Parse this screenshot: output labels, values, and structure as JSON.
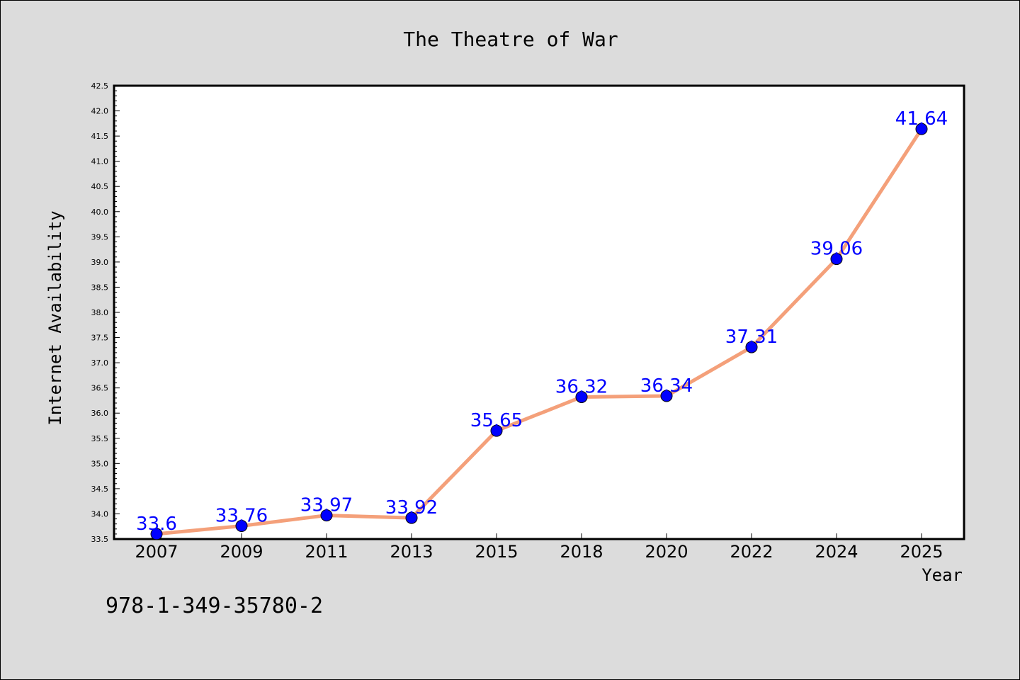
{
  "chart_data": {
    "type": "line",
    "title": "The Theatre of War",
    "xlabel": "Year",
    "ylabel": "Internet Availability",
    "categories": [
      "2007",
      "2009",
      "2011",
      "2013",
      "2015",
      "2018",
      "2020",
      "2022",
      "2024",
      "2025"
    ],
    "values": [
      33.6,
      33.76,
      33.97,
      33.92,
      35.65,
      36.32,
      36.34,
      37.31,
      39.06,
      41.64
    ],
    "data_labels": [
      "33.6",
      "33.76",
      "33.97",
      "33.92",
      "35.65",
      "36.32",
      "36.34",
      "37.31",
      "39.06",
      "41.64"
    ],
    "ylim": [
      33.5,
      42.5
    ],
    "yticks": [
      "33.5",
      "34.0",
      "34.5",
      "35.0",
      "35.5",
      "36.0",
      "36.5",
      "37.0",
      "37.5",
      "38.0",
      "38.5",
      "39.0",
      "39.5",
      "40.0",
      "40.5",
      "41.0",
      "41.5",
      "42.0",
      "42.5"
    ],
    "grid": false,
    "line_color": "#f4a07a",
    "marker_color": "#0000ff",
    "label_color": "#0000ff",
    "background": "#dcdcdc",
    "plot_background": "#ffffff"
  },
  "footer": {
    "isbn": "978-1-349-35780-2"
  }
}
